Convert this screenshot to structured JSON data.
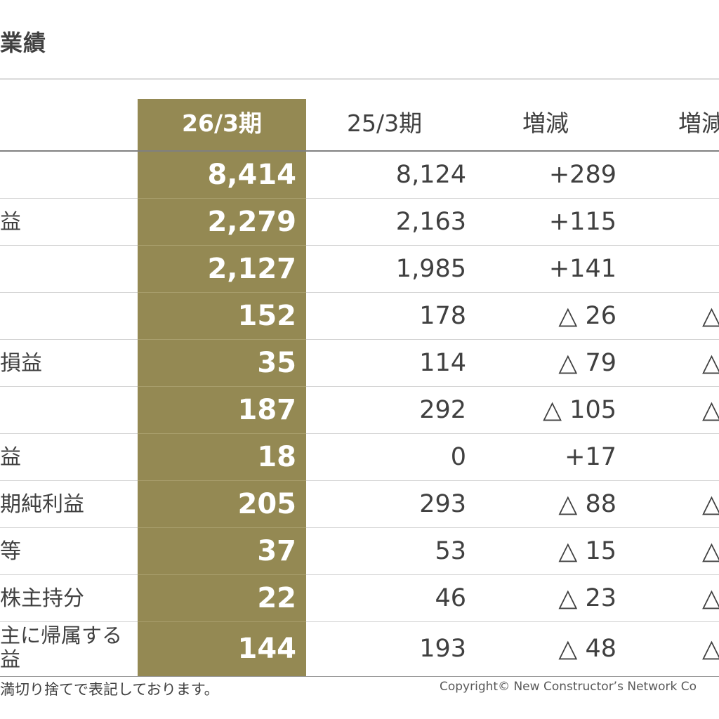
{
  "page": {
    "title": "業績"
  },
  "table": {
    "headers": {
      "current": "26/3期",
      "previous": "25/3期",
      "change": "増減",
      "change_rate": "増減"
    },
    "rows": [
      {
        "label": "",
        "current": "8,414",
        "previous": "8,124",
        "change": "+289",
        "rate": ""
      },
      {
        "label": "益",
        "current": "2,279",
        "previous": "2,163",
        "change": "+115",
        "rate": ""
      },
      {
        "label": "",
        "current": "2,127",
        "previous": "1,985",
        "change": "+141",
        "rate": ""
      },
      {
        "label": "",
        "current": "152",
        "previous": "178",
        "change": "△ 26",
        "rate": "△"
      },
      {
        "label": "損益",
        "current": "35",
        "previous": "114",
        "change": "△ 79",
        "rate": "△"
      },
      {
        "label": "",
        "current": "187",
        "previous": "292",
        "change": "△ 105",
        "rate": "△"
      },
      {
        "label": "益",
        "current": "18",
        "previous": "0",
        "change": "+17",
        "rate": ""
      },
      {
        "label": "期純利益",
        "current": "205",
        "previous": "293",
        "change": "△ 88",
        "rate": "△"
      },
      {
        "label": "等",
        "current": "37",
        "previous": "53",
        "change": "△ 15",
        "rate": "△"
      },
      {
        "label": "株主持分",
        "current": "22",
        "previous": "46",
        "change": "△ 23",
        "rate": "△"
      },
      {
        "label_line1": "主に帰属する",
        "label_line2": "益",
        "current": "144",
        "previous": "193",
        "change": "△ 48",
        "rate": "△"
      }
    ]
  },
  "footer": {
    "note": "満切り捨てで表記しております。",
    "copyright": "Copyright© New Constructor’s Network Co"
  },
  "colors": {
    "highlight": "#948953",
    "text": "#404040"
  }
}
